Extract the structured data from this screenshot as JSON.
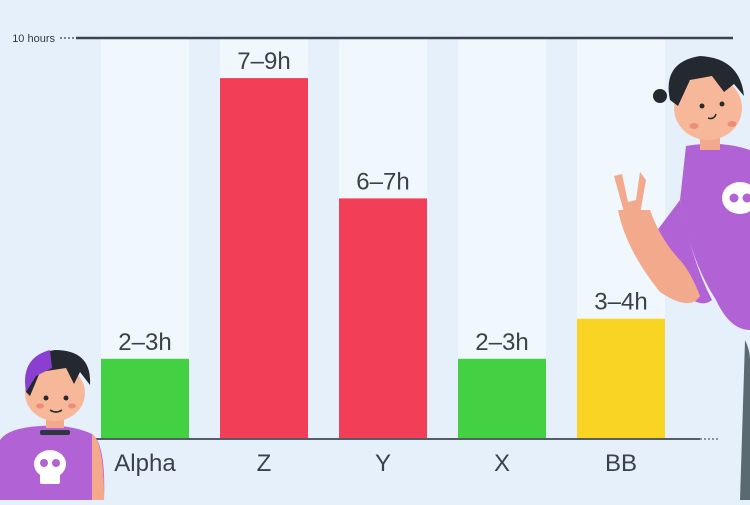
{
  "chart_data": {
    "type": "bar",
    "title": "",
    "xlabel": "",
    "ylabel": "",
    "ylim": [
      0,
      10
    ],
    "y_reference": {
      "value": 10,
      "label": "10 hours"
    },
    "grid": false,
    "categories": [
      "Alpha",
      "Z",
      "Y",
      "X",
      "BB"
    ],
    "ranges": [
      [
        2,
        3
      ],
      [
        7,
        9
      ],
      [
        6,
        7
      ],
      [
        2,
        3
      ],
      [
        3,
        4
      ]
    ],
    "values": [
      2,
      9,
      6,
      2,
      3
    ],
    "labels": [
      "2–3h",
      "7–9h",
      "6–7h",
      "2–3h",
      "3–4h"
    ],
    "colors": [
      "#43d143",
      "#f23f57",
      "#f23f57",
      "#43d143",
      "#f9d423"
    ],
    "track_color": "#f0f7fd",
    "background_color": "#e6f0fa"
  },
  "illustrations": {
    "left": "teen-with-purple-hair-illustration",
    "right": "teen-pointing-illustration"
  }
}
